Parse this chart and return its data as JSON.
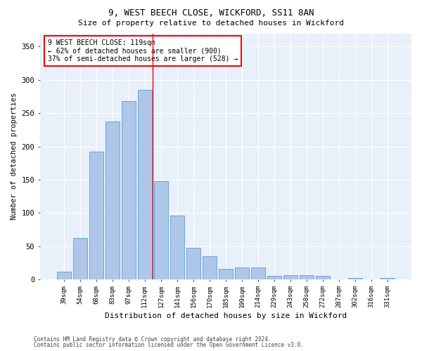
{
  "title1": "9, WEST BEECH CLOSE, WICKFORD, SS11 8AN",
  "title2": "Size of property relative to detached houses in Wickford",
  "xlabel": "Distribution of detached houses by size in Wickford",
  "ylabel": "Number of detached properties",
  "categories": [
    "39sqm",
    "54sqm",
    "68sqm",
    "83sqm",
    "97sqm",
    "112sqm",
    "127sqm",
    "141sqm",
    "156sqm",
    "170sqm",
    "185sqm",
    "199sqm",
    "214sqm",
    "229sqm",
    "243sqm",
    "258sqm",
    "272sqm",
    "287sqm",
    "302sqm",
    "316sqm",
    "331sqm"
  ],
  "values": [
    12,
    62,
    192,
    238,
    268,
    285,
    148,
    96,
    48,
    35,
    16,
    18,
    18,
    5,
    7,
    7,
    5,
    0,
    2,
    0,
    2
  ],
  "bar_color": "#aec6e8",
  "bar_edge_color": "#5a9fd4",
  "fig_bg_color": "#ffffff",
  "ax_bg_color": "#e8f0fa",
  "grid_color": "#ffffff",
  "annotation_box_text": "9 WEST BEECH CLOSE: 119sqm\n← 62% of detached houses are smaller (900)\n37% of semi-detached houses are larger (528) →",
  "vline_x": 5.5,
  "vline_color": "red",
  "footnote1": "Contains HM Land Registry data © Crown copyright and database right 2024.",
  "footnote2": "Contains public sector information licensed under the Open Government Licence v3.0.",
  "ylim": [
    0,
    370
  ],
  "yticks": [
    0,
    50,
    100,
    150,
    200,
    250,
    300,
    350
  ]
}
